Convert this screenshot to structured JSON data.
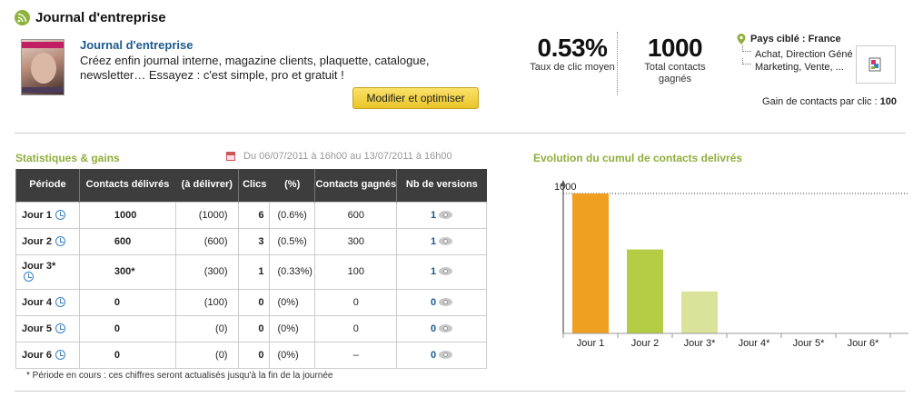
{
  "header": {
    "title": "Journal d'entreprise",
    "icon": "rss-icon"
  },
  "journal": {
    "title": "Journal d'entreprise",
    "description": "Créez enfin journal interne, magazine clients, plaquette, catalogue, newsletter… Essayez : c'est simple, pro et gratuit !",
    "button_label": "Modifier et optimiser",
    "thumbnail_label": "Beauty Home"
  },
  "kpis": {
    "ctr_value": "0.53%",
    "ctr_label": "Taux de clic moyen",
    "contacts_value": "1000",
    "contacts_label": "Total contacts gagnés"
  },
  "targeting": {
    "title": "Pays ciblé : France",
    "items": [
      "Achat, Direction Géné",
      "Marketing, Vente, ..."
    ],
    "gain_label": "Gain de contacts par clic :",
    "gain_value": "100"
  },
  "stats": {
    "title": "Statistiques & gains",
    "date_range": "Du 06/07/2011 à 16h00 au 13/07/2011 à 16h00",
    "headers": {
      "period": "Période",
      "delivered": "Contacts délivrés",
      "to_deliver": "(à délivrer)",
      "clicks": "Clics",
      "pct": "(%)",
      "gained": "Contacts gagnés",
      "versions": "Nb de versions"
    },
    "rows": [
      {
        "period": "Jour 1",
        "delivered": "1000",
        "to_deliver": "(1000)",
        "clicks": "6",
        "pct": "(0.6%)",
        "gained": "600",
        "versions": "1"
      },
      {
        "period": "Jour 2",
        "delivered": "600",
        "to_deliver": "(600)",
        "clicks": "3",
        "pct": "(0.5%)",
        "gained": "300",
        "versions": "1"
      },
      {
        "period": "Jour 3*",
        "delivered": "300*",
        "to_deliver": "(300)",
        "clicks": "1",
        "pct": "(0.33%)",
        "gained": "100",
        "versions": "1"
      },
      {
        "period": "Jour 4",
        "delivered": "0",
        "to_deliver": "(100)",
        "clicks": "0",
        "pct": "(0%)",
        "gained": "0",
        "versions": "0"
      },
      {
        "period": "Jour 5",
        "delivered": "0",
        "to_deliver": "(0)",
        "clicks": "0",
        "pct": "(0%)",
        "gained": "0",
        "versions": "0"
      },
      {
        "period": "Jour 6",
        "delivered": "0",
        "to_deliver": "(0)",
        "clicks": "0",
        "pct": "(0%)",
        "gained": "–",
        "versions": "0"
      }
    ],
    "footnote": "*  Période en cours : ces chiffres seront actualisés jusqu'à la fin de la journée"
  },
  "chart_data": {
    "type": "bar",
    "title": "Evolution du cumul de contacts delivrés",
    "categories": [
      "Jour 1",
      "Jour 2",
      "Jour 3*",
      "Jour 4*",
      "Jour 5*",
      "Jour 6*"
    ],
    "values": [
      1000,
      600,
      300,
      0,
      0,
      0
    ],
    "colors": [
      "#f0a020",
      "#b5cc45",
      "#d9e49a",
      "#cccccc",
      "#cccccc",
      "#cccccc"
    ],
    "ylim": [
      0,
      1000
    ],
    "y_max_label": "1000",
    "reference_line": 1000
  }
}
